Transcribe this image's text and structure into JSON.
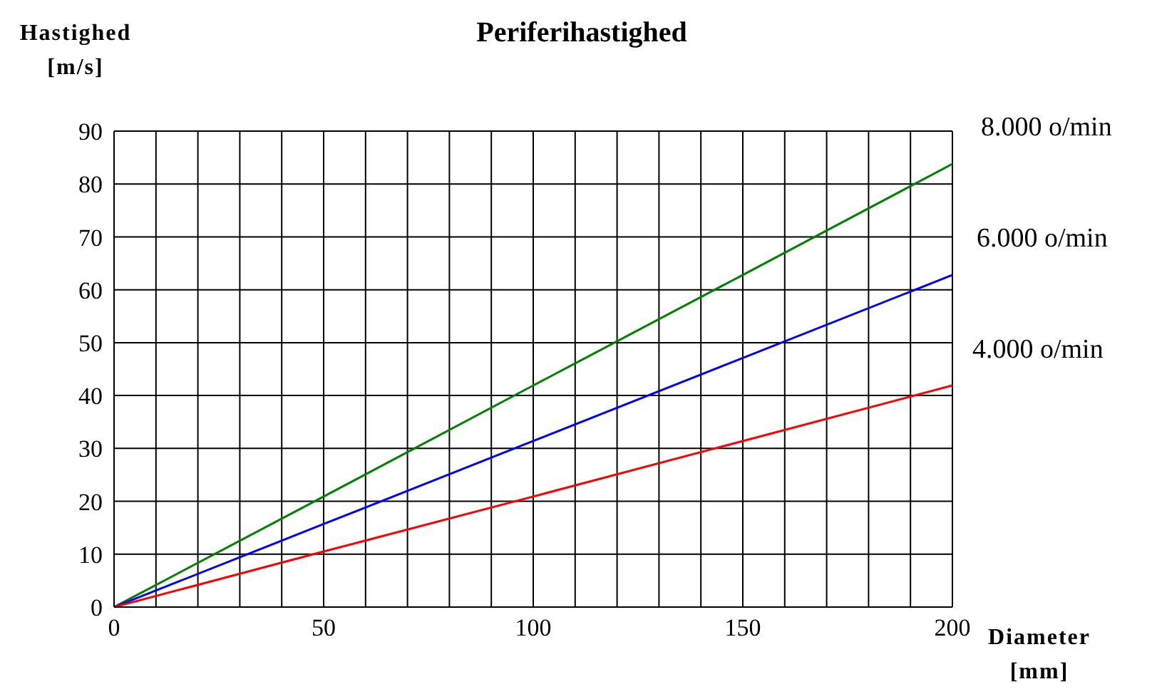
{
  "chart_data": {
    "type": "line",
    "title": "Periferihastighed",
    "xlabel": "Diameter [mm]",
    "ylabel": "Hastighed [m/s]",
    "x": [
      0,
      50,
      100,
      150,
      200
    ],
    "series": [
      {
        "name": "8.000 o/min",
        "color": "#008000",
        "values": [
          0,
          20.9,
          41.9,
          62.8,
          83.8
        ]
      },
      {
        "name": "6.000 o/min",
        "color": "#0000ff",
        "values": [
          0,
          15.7,
          31.4,
          47.1,
          62.8
        ]
      },
      {
        "name": "4.000 o/min",
        "color": "#ff0000",
        "values": [
          0,
          10.5,
          20.9,
          31.4,
          41.9
        ]
      }
    ],
    "xlim": [
      0,
      200
    ],
    "xticks": [
      0,
      {
        "value": 10,
        "label": null
      },
      {
        "value": 20,
        "label": null
      },
      {
        "value": 30,
        "label": null
      },
      {
        "value": 40,
        "label": null
      },
      50,
      {
        "value": 60,
        "label": null
      },
      {
        "value": 70,
        "label": null
      },
      {
        "value": 80,
        "label": null
      },
      {
        "value": 90,
        "label": null
      },
      100,
      {
        "value": 110,
        "label": null
      },
      {
        "value": 120,
        "label": null
      },
      {
        "value": 130,
        "label": null
      },
      {
        "value": 140,
        "label": null
      },
      150,
      {
        "value": 160,
        "label": null
      },
      {
        "value": 170,
        "label": null
      },
      {
        "value": 180,
        "label": null
      },
      {
        "value": 190,
        "label": null
      },
      200
    ],
    "ylim": [
      0,
      90
    ],
    "yticks": [
      0,
      10,
      20,
      30,
      40,
      50,
      60,
      70,
      80,
      90
    ],
    "grid": true,
    "line_style": "solid"
  }
}
